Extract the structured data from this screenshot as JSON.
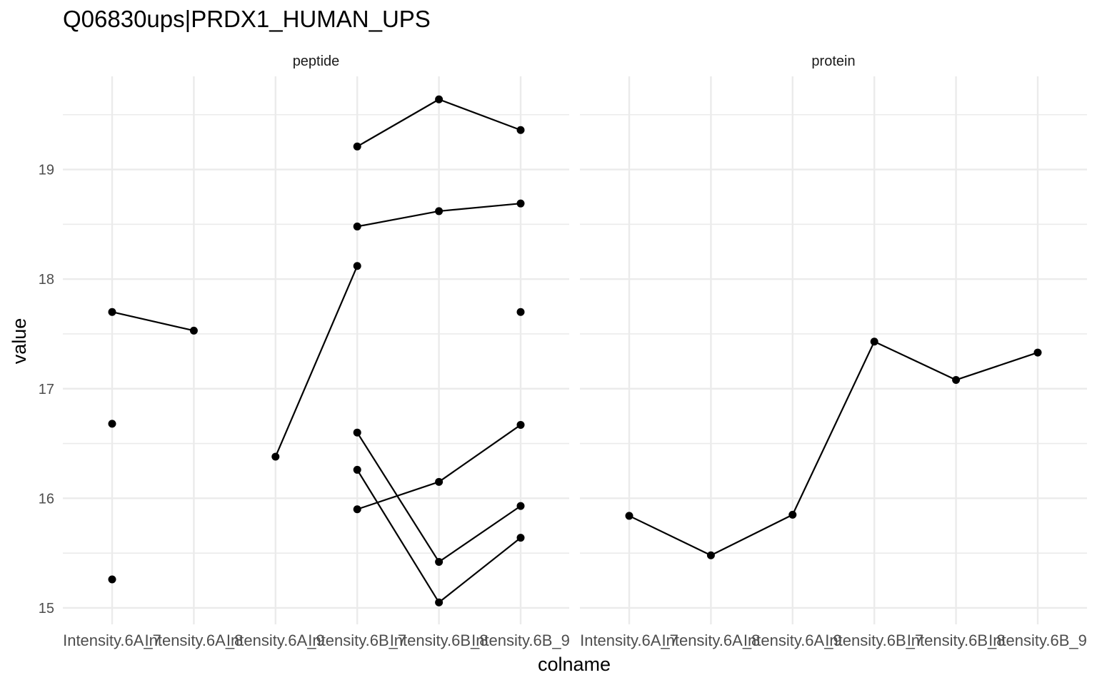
{
  "chart_data": {
    "type": "line",
    "title": "Q06830ups|PRDX1_HUMAN_UPS",
    "xlabel": "colname",
    "ylabel": "value",
    "ylim": [
      14.85,
      19.85
    ],
    "yticks": [
      15,
      16,
      17,
      18,
      19
    ],
    "grid": true,
    "categories": [
      "Intensity.6A_7",
      "Intensity.6A_8",
      "Intensity.6A_9",
      "Intensity.6B_7",
      "Intensity.6B_8",
      "Intensity.6B_9"
    ],
    "panels": [
      {
        "name": "peptide",
        "series": [
          {
            "values": [
              17.7,
              17.53,
              null,
              null,
              null,
              null
            ]
          },
          {
            "values": [
              16.68,
              null,
              null,
              null,
              null,
              null
            ]
          },
          {
            "values": [
              15.26,
              null,
              null,
              null,
              null,
              null
            ]
          },
          {
            "values": [
              null,
              null,
              16.38,
              18.12,
              null,
              null
            ]
          },
          {
            "values": [
              null,
              null,
              null,
              19.21,
              19.64,
              19.36
            ]
          },
          {
            "values": [
              null,
              null,
              null,
              18.48,
              18.62,
              18.69
            ]
          },
          {
            "values": [
              null,
              null,
              null,
              16.6,
              15.42,
              15.93
            ]
          },
          {
            "values": [
              null,
              null,
              null,
              16.26,
              15.05,
              15.64
            ]
          },
          {
            "values": [
              null,
              null,
              null,
              15.9,
              16.15,
              16.67
            ]
          },
          {
            "values": [
              null,
              null,
              null,
              null,
              null,
              17.7
            ]
          }
        ]
      },
      {
        "name": "protein",
        "series": [
          {
            "values": [
              15.84,
              15.48,
              15.85,
              17.43,
              17.08,
              17.33
            ]
          }
        ]
      }
    ]
  }
}
